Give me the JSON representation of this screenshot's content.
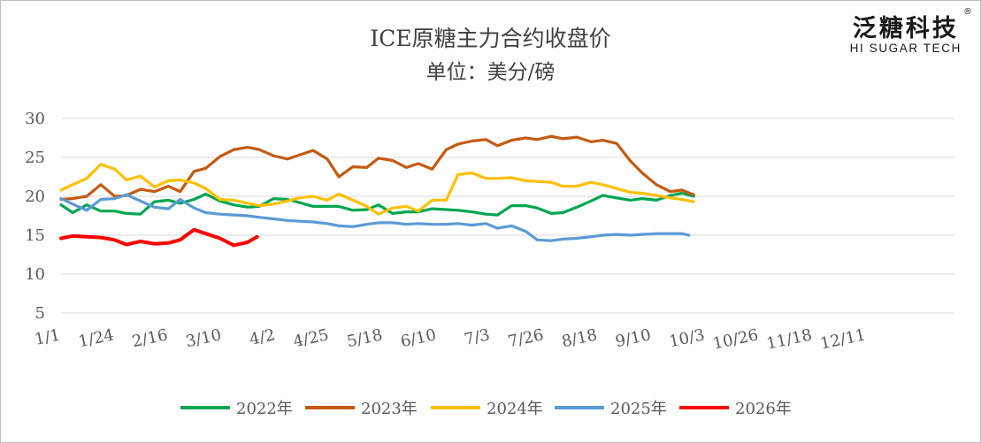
{
  "header": {
    "title": "ICE原糖主力合约收盘价",
    "subtitle": "单位：美分/磅"
  },
  "logo": {
    "cn": "泛糖科技",
    "en": "HI SUGAR TECH",
    "reg": "®"
  },
  "chart_data": {
    "type": "line",
    "title": "ICE原糖主力合约收盘价",
    "subtitle": "单位：美分/磅",
    "xlabel": "",
    "ylabel": "",
    "ylim": [
      0,
      30
    ],
    "yticks": [
      5,
      10,
      15,
      20,
      25,
      30
    ],
    "xticks": [
      "1/1",
      "1/24",
      "2/16",
      "3/10",
      "4/2",
      "4/25",
      "5/18",
      "6/10",
      "7/3",
      "7/26",
      "8/18",
      "9/10",
      "10/3",
      "10/26",
      "11/18",
      "12/11"
    ],
    "grid": true,
    "legend_position": "bottom",
    "series": [
      {
        "name": "2022年",
        "color": "#00a651",
        "points": [
          [
            0,
            18.9
          ],
          [
            5,
            17.9
          ],
          [
            11,
            18.9
          ],
          [
            17,
            18.1
          ],
          [
            23,
            18.1
          ],
          [
            28,
            17.8
          ],
          [
            34,
            17.7
          ],
          [
            40,
            19.3
          ],
          [
            46,
            19.5
          ],
          [
            51,
            19.1
          ],
          [
            57,
            19.6
          ],
          [
            62,
            20.3
          ],
          [
            68,
            19.4
          ],
          [
            74,
            18.9
          ],
          [
            80,
            18.6
          ],
          [
            85,
            18.7
          ],
          [
            91,
            19.7
          ],
          [
            97,
            19.6
          ],
          [
            102,
            19.2
          ],
          [
            108,
            18.7
          ],
          [
            114,
            18.7
          ],
          [
            119,
            18.7
          ],
          [
            125,
            18.2
          ],
          [
            131,
            18.3
          ],
          [
            136,
            18.9
          ],
          [
            142,
            17.8
          ],
          [
            148,
            18.0
          ],
          [
            153,
            18.0
          ],
          [
            159,
            18.4
          ],
          [
            165,
            18.3
          ],
          [
            170,
            18.2
          ],
          [
            176,
            18.0
          ],
          [
            182,
            17.7
          ],
          [
            187,
            17.6
          ],
          [
            193,
            18.8
          ],
          [
            199,
            18.8
          ],
          [
            204,
            18.5
          ],
          [
            210,
            17.8
          ],
          [
            215,
            17.9
          ],
          [
            221,
            18.6
          ],
          [
            227,
            19.4
          ],
          [
            232,
            20.1
          ],
          [
            238,
            19.8
          ],
          [
            244,
            19.5
          ],
          [
            249,
            19.7
          ],
          [
            255,
            19.5
          ],
          [
            261,
            20.1
          ],
          [
            266,
            20.4
          ],
          [
            271,
            20.0
          ]
        ]
      },
      {
        "name": "2023年",
        "color": "#c55a11",
        "points": [
          [
            0,
            19.6
          ],
          [
            5,
            19.7
          ],
          [
            11,
            20.0
          ],
          [
            17,
            21.5
          ],
          [
            23,
            20.0
          ],
          [
            28,
            20.1
          ],
          [
            34,
            20.9
          ],
          [
            40,
            20.6
          ],
          [
            46,
            21.3
          ],
          [
            51,
            20.6
          ],
          [
            57,
            23.2
          ],
          [
            62,
            23.6
          ],
          [
            68,
            25.1
          ],
          [
            74,
            26.0
          ],
          [
            80,
            26.3
          ],
          [
            85,
            26.0
          ],
          [
            91,
            25.2
          ],
          [
            97,
            24.8
          ],
          [
            102,
            25.3
          ],
          [
            108,
            25.9
          ],
          [
            114,
            24.8
          ],
          [
            119,
            22.5
          ],
          [
            125,
            23.8
          ],
          [
            131,
            23.7
          ],
          [
            136,
            24.9
          ],
          [
            142,
            24.6
          ],
          [
            148,
            23.7
          ],
          [
            153,
            24.2
          ],
          [
            159,
            23.5
          ],
          [
            165,
            26.0
          ],
          [
            170,
            26.7
          ],
          [
            176,
            27.1
          ],
          [
            182,
            27.3
          ],
          [
            187,
            26.5
          ],
          [
            193,
            27.2
          ],
          [
            199,
            27.5
          ],
          [
            204,
            27.3
          ],
          [
            210,
            27.7
          ],
          [
            215,
            27.4
          ],
          [
            221,
            27.6
          ],
          [
            227,
            27.0
          ],
          [
            232,
            27.2
          ],
          [
            238,
            26.8
          ],
          [
            244,
            24.5
          ],
          [
            249,
            23.0
          ],
          [
            255,
            21.5
          ],
          [
            261,
            20.6
          ],
          [
            266,
            20.8
          ],
          [
            271,
            20.2
          ]
        ]
      },
      {
        "name": "2024年",
        "color": "#ffc000",
        "points": [
          [
            0,
            20.8
          ],
          [
            5,
            21.5
          ],
          [
            11,
            22.3
          ],
          [
            17,
            24.1
          ],
          [
            23,
            23.5
          ],
          [
            28,
            22.1
          ],
          [
            34,
            22.6
          ],
          [
            40,
            21.2
          ],
          [
            46,
            22.0
          ],
          [
            51,
            22.1
          ],
          [
            57,
            21.7
          ],
          [
            62,
            21.0
          ],
          [
            68,
            19.6
          ],
          [
            74,
            19.5
          ],
          [
            80,
            19.1
          ],
          [
            85,
            18.8
          ],
          [
            91,
            19.0
          ],
          [
            97,
            19.4
          ],
          [
            102,
            19.8
          ],
          [
            108,
            20.0
          ],
          [
            114,
            19.5
          ],
          [
            119,
            20.3
          ],
          [
            125,
            19.5
          ],
          [
            131,
            18.7
          ],
          [
            136,
            17.7
          ],
          [
            142,
            18.5
          ],
          [
            148,
            18.7
          ],
          [
            153,
            18.1
          ],
          [
            159,
            19.5
          ],
          [
            165,
            19.5
          ],
          [
            170,
            22.8
          ],
          [
            176,
            23.0
          ],
          [
            182,
            22.3
          ],
          [
            187,
            22.3
          ],
          [
            193,
            22.4
          ],
          [
            199,
            22.0
          ],
          [
            204,
            21.9
          ],
          [
            210,
            21.8
          ],
          [
            215,
            21.3
          ],
          [
            221,
            21.3
          ],
          [
            227,
            21.8
          ],
          [
            232,
            21.5
          ],
          [
            238,
            21.0
          ],
          [
            244,
            20.5
          ],
          [
            249,
            20.4
          ],
          [
            255,
            20.1
          ],
          [
            261,
            19.8
          ],
          [
            266,
            19.6
          ],
          [
            271,
            19.3
          ]
        ]
      },
      {
        "name": "2025年",
        "color": "#5b9bd5",
        "points": [
          [
            0,
            19.7
          ],
          [
            5,
            19.0
          ],
          [
            11,
            18.2
          ],
          [
            17,
            19.6
          ],
          [
            23,
            19.7
          ],
          [
            28,
            20.2
          ],
          [
            34,
            19.4
          ],
          [
            40,
            18.6
          ],
          [
            46,
            18.4
          ],
          [
            51,
            19.6
          ],
          [
            57,
            18.5
          ],
          [
            62,
            17.9
          ],
          [
            68,
            17.7
          ],
          [
            74,
            17.6
          ],
          [
            80,
            17.5
          ],
          [
            85,
            17.3
          ],
          [
            91,
            17.1
          ],
          [
            97,
            16.9
          ],
          [
            102,
            16.8
          ],
          [
            108,
            16.7
          ],
          [
            114,
            16.5
          ],
          [
            119,
            16.2
          ],
          [
            125,
            16.1
          ],
          [
            131,
            16.4
          ],
          [
            136,
            16.6
          ],
          [
            142,
            16.6
          ],
          [
            148,
            16.4
          ],
          [
            153,
            16.5
          ],
          [
            159,
            16.4
          ],
          [
            165,
            16.4
          ],
          [
            170,
            16.5
          ],
          [
            176,
            16.3
          ],
          [
            182,
            16.5
          ],
          [
            187,
            15.9
          ],
          [
            193,
            16.2
          ],
          [
            199,
            15.5
          ],
          [
            204,
            14.4
          ],
          [
            210,
            14.3
          ],
          [
            215,
            14.5
          ],
          [
            221,
            14.6
          ],
          [
            227,
            14.8
          ],
          [
            232,
            15.0
          ],
          [
            238,
            15.1
          ],
          [
            244,
            15.0
          ],
          [
            249,
            15.1
          ],
          [
            255,
            15.2
          ],
          [
            261,
            15.2
          ],
          [
            266,
            15.2
          ],
          [
            269,
            15.0
          ]
        ]
      },
      {
        "name": "2026年",
        "color": "#ff0000",
        "points": [
          [
            0,
            14.6
          ],
          [
            5,
            14.9
          ],
          [
            11,
            14.8
          ],
          [
            17,
            14.7
          ],
          [
            23,
            14.4
          ],
          [
            28,
            13.8
          ],
          [
            34,
            14.2
          ],
          [
            40,
            13.9
          ],
          [
            46,
            14.0
          ],
          [
            51,
            14.4
          ],
          [
            57,
            15.7
          ],
          [
            62,
            15.2
          ],
          [
            68,
            14.6
          ],
          [
            74,
            13.7
          ],
          [
            80,
            14.1
          ],
          [
            84,
            14.8
          ]
        ]
      }
    ]
  }
}
